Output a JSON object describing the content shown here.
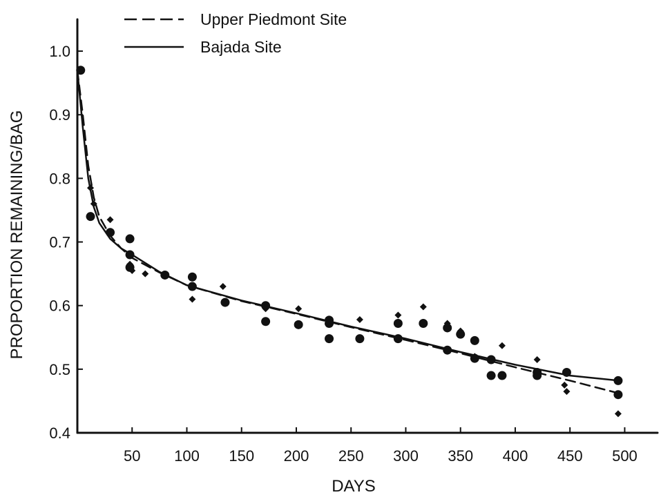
{
  "chart_data": {
    "type": "scatter",
    "xlabel": "DAYS",
    "ylabel": "PROPORTION REMAINING/BAG",
    "xlim": [
      0,
      530
    ],
    "ylim": [
      0.4,
      1.05
    ],
    "x_ticks": [
      "50",
      "100",
      "150",
      "200",
      "250",
      "300",
      "350",
      "400",
      "450",
      "500"
    ],
    "y_ticks": [
      "0.4",
      "0.5",
      "0.6",
      "0.7",
      "0.8",
      "0.9",
      "1.0"
    ],
    "legend_position": "top-left",
    "grid": false,
    "series": [
      {
        "name": "Upper Piedmont Site",
        "style": "dashed",
        "color": "#111111",
        "curve": [
          [
            0,
            0.97
          ],
          [
            5,
            0.9
          ],
          [
            10,
            0.82
          ],
          [
            15,
            0.77
          ],
          [
            20,
            0.74
          ],
          [
            30,
            0.71
          ],
          [
            40,
            0.69
          ],
          [
            50,
            0.675
          ],
          [
            75,
            0.652
          ],
          [
            100,
            0.632
          ],
          [
            150,
            0.607
          ],
          [
            200,
            0.587
          ],
          [
            250,
            0.566
          ],
          [
            300,
            0.546
          ],
          [
            350,
            0.525
          ],
          [
            400,
            0.503
          ],
          [
            450,
            0.482
          ],
          [
            495,
            0.462
          ]
        ],
        "points": [
          [
            3,
            0.97
          ],
          [
            12,
            0.785
          ],
          [
            15,
            0.76
          ],
          [
            30,
            0.735
          ],
          [
            30,
            0.715
          ],
          [
            48,
            0.665
          ],
          [
            50,
            0.655
          ],
          [
            62,
            0.65
          ],
          [
            105,
            0.61
          ],
          [
            133,
            0.63
          ],
          [
            172,
            0.595
          ],
          [
            202,
            0.595
          ],
          [
            230,
            0.575
          ],
          [
            258,
            0.578
          ],
          [
            293,
            0.585
          ],
          [
            316,
            0.598
          ],
          [
            338,
            0.572
          ],
          [
            350,
            0.56
          ],
          [
            363,
            0.52
          ],
          [
            388,
            0.537
          ],
          [
            420,
            0.515
          ],
          [
            445,
            0.475
          ],
          [
            447,
            0.465
          ],
          [
            494,
            0.43
          ]
        ]
      },
      {
        "name": "Bajada Site",
        "style": "solid",
        "color": "#111111",
        "curve": [
          [
            0,
            0.97
          ],
          [
            5,
            0.88
          ],
          [
            10,
            0.8
          ],
          [
            15,
            0.755
          ],
          [
            20,
            0.73
          ],
          [
            30,
            0.705
          ],
          [
            40,
            0.69
          ],
          [
            50,
            0.68
          ],
          [
            75,
            0.653
          ],
          [
            100,
            0.632
          ],
          [
            150,
            0.608
          ],
          [
            200,
            0.588
          ],
          [
            250,
            0.567
          ],
          [
            300,
            0.548
          ],
          [
            350,
            0.527
          ],
          [
            400,
            0.507
          ],
          [
            450,
            0.49
          ],
          [
            495,
            0.482
          ]
        ],
        "points": [
          [
            3,
            0.97
          ],
          [
            12,
            0.74
          ],
          [
            30,
            0.715
          ],
          [
            48,
            0.705
          ],
          [
            48,
            0.68
          ],
          [
            48,
            0.66
          ],
          [
            80,
            0.648
          ],
          [
            105,
            0.645
          ],
          [
            105,
            0.63
          ],
          [
            135,
            0.605
          ],
          [
            172,
            0.6
          ],
          [
            172,
            0.575
          ],
          [
            202,
            0.57
          ],
          [
            230,
            0.577
          ],
          [
            230,
            0.572
          ],
          [
            230,
            0.548
          ],
          [
            258,
            0.548
          ],
          [
            293,
            0.572
          ],
          [
            293,
            0.548
          ],
          [
            316,
            0.572
          ],
          [
            338,
            0.53
          ],
          [
            338,
            0.565
          ],
          [
            350,
            0.555
          ],
          [
            363,
            0.545
          ],
          [
            363,
            0.517
          ],
          [
            378,
            0.515
          ],
          [
            378,
            0.49
          ],
          [
            388,
            0.49
          ],
          [
            420,
            0.495
          ],
          [
            420,
            0.49
          ],
          [
            447,
            0.495
          ],
          [
            494,
            0.482
          ],
          [
            494,
            0.46
          ]
        ]
      }
    ]
  }
}
